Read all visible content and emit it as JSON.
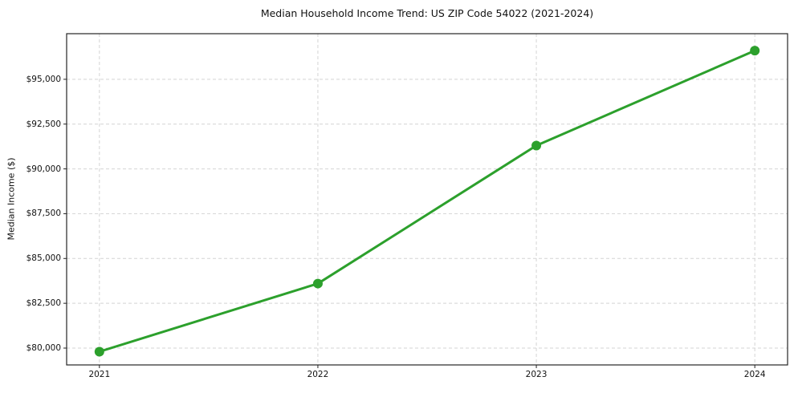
{
  "chart_data": {
    "type": "line",
    "title": "Median Household Income Trend: US ZIP Code 54022 (2021-2024)",
    "xlabel": "",
    "ylabel": "Median Income ($)",
    "x": [
      2021,
      2022,
      2023,
      2024
    ],
    "x_tick_labels": [
      "2021",
      "2022",
      "2023",
      "2024"
    ],
    "series": [
      {
        "name": "Median Household Income",
        "values": [
          79800,
          83600,
          91300,
          96600
        ]
      }
    ],
    "y_ticks": [
      80000,
      82500,
      85000,
      87500,
      90000,
      92500,
      95000
    ],
    "y_tick_labels": [
      "$80,000",
      "$82,500",
      "$85,000",
      "$87,500",
      "$90,000",
      "$92,500",
      "$95,000"
    ],
    "xlim": [
      2020.85,
      2024.15
    ],
    "ylim": [
      79060,
      97545
    ],
    "grid": true,
    "legend": "none",
    "grid_color": "#d4d4d4",
    "line_color": "#2ca02c",
    "marker": "circle",
    "background_color": "#ffffff"
  }
}
